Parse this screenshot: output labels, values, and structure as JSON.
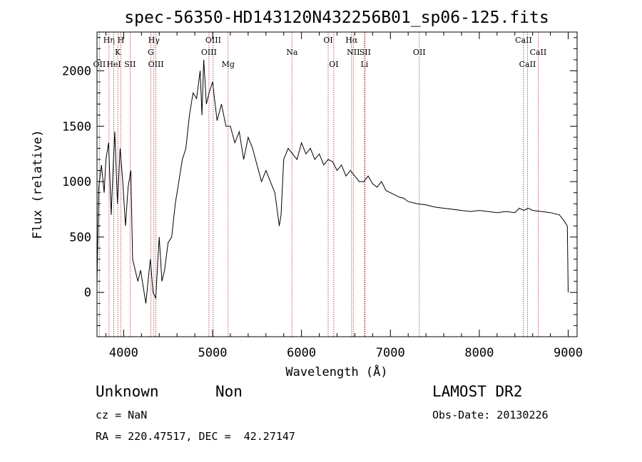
{
  "chart_data": {
    "type": "line",
    "title": "spec-56350-HD143120N432256B01_sp06-125.fits",
    "xlabel": "Wavelength (Å)",
    "ylabel": "Flux (relative)",
    "xlim": [
      3700,
      9100
    ],
    "ylim": [
      -400,
      2350
    ],
    "xticks": [
      4000,
      5000,
      6000,
      7000,
      8000,
      9000
    ],
    "yticks": [
      0,
      500,
      1000,
      1500,
      2000
    ],
    "grid": false,
    "line_color": "#000000",
    "marker_color": "#b03030",
    "series": [
      {
        "x": [
          3700,
          3720,
          3750,
          3780,
          3800,
          3830,
          3860,
          3880,
          3900,
          3930,
          3960,
          3990,
          4020,
          4050,
          4080,
          4100,
          4130,
          4160,
          4190,
          4220,
          4250,
          4280,
          4300,
          4330,
          4360,
          4400,
          4430,
          4460,
          4500,
          4540,
          4580,
          4620,
          4660,
          4700,
          4740,
          4780,
          4820,
          4860,
          4880,
          4900,
          4930,
          4960,
          5000,
          5050,
          5100,
          5150,
          5200,
          5250,
          5300,
          5350,
          5400,
          5450,
          5500,
          5550,
          5600,
          5650,
          5700,
          5750,
          5770,
          5800,
          5850,
          5900,
          5950,
          6000,
          6050,
          6100,
          6150,
          6200,
          6250,
          6300,
          6350,
          6400,
          6450,
          6500,
          6550,
          6600,
          6650,
          6700,
          6750,
          6800,
          6850,
          6900,
          6950,
          7000,
          7050,
          7100,
          7150,
          7200,
          7300,
          7400,
          7500,
          7600,
          7700,
          7800,
          7900,
          8000,
          8100,
          8200,
          8300,
          8400,
          8450,
          8500,
          8550,
          8600,
          8700,
          8800,
          8900,
          8950,
          8990,
          9000
        ],
        "y": [
          100,
          950,
          1150,
          900,
          1200,
          1350,
          700,
          1100,
          1450,
          800,
          1300,
          1000,
          600,
          950,
          1100,
          300,
          200,
          100,
          200,
          50,
          -100,
          150,
          300,
          0,
          -50,
          500,
          100,
          200,
          450,
          500,
          800,
          1000,
          1200,
          1300,
          1600,
          1800,
          1750,
          2000,
          1600,
          2100,
          1700,
          1800,
          1900,
          1550,
          1700,
          1500,
          1500,
          1350,
          1450,
          1200,
          1400,
          1300,
          1150,
          1000,
          1100,
          1000,
          900,
          600,
          700,
          1200,
          1300,
          1250,
          1200,
          1350,
          1250,
          1300,
          1200,
          1250,
          1150,
          1200,
          1180,
          1100,
          1150,
          1050,
          1100,
          1050,
          1000,
          1000,
          1050,
          980,
          950,
          1000,
          920,
          900,
          880,
          860,
          850,
          820,
          800,
          790,
          770,
          760,
          750,
          740,
          730,
          740,
          730,
          720,
          730,
          720,
          760,
          740,
          760,
          740,
          730,
          720,
          700,
          650,
          600,
          0
        ]
      }
    ],
    "line_markers": [
      {
        "label": "Hη",
        "x": 3835,
        "row": 0
      },
      {
        "label": "H",
        "x": 3968,
        "row": 0
      },
      {
        "label": "Hγ",
        "x": 4340,
        "row": 0
      },
      {
        "label": "OIII",
        "x": 5007,
        "row": 0
      },
      {
        "label": "OI",
        "x": 6300,
        "row": 0
      },
      {
        "label": "Hα",
        "x": 6563,
        "row": 0
      },
      {
        "label": "CaII",
        "x": 8498,
        "row": 0
      },
      {
        "label": "K",
        "x": 3934,
        "row": 1
      },
      {
        "label": "G",
        "x": 4305,
        "row": 1
      },
      {
        "label": "OIII",
        "x": 4959,
        "row": 1
      },
      {
        "label": "Na",
        "x": 5893,
        "row": 1
      },
      {
        "label": "NII",
        "x": 6583,
        "row": 1
      },
      {
        "label": "SII",
        "x": 6716,
        "row": 1
      },
      {
        "label": "OII",
        "x": 7325,
        "row": 1
      },
      {
        "label": "CaII",
        "x": 8662,
        "row": 1
      },
      {
        "label": "OII",
        "x": 3727,
        "row": 2
      },
      {
        "label": "HeI",
        "x": 3889,
        "row": 2
      },
      {
        "label": "SII",
        "x": 4072,
        "row": 2
      },
      {
        "label": "OIII",
        "x": 4363,
        "row": 2
      },
      {
        "label": "Mg",
        "x": 5175,
        "row": 2
      },
      {
        "label": "OI",
        "x": 6363,
        "row": 2
      },
      {
        "label": "Li",
        "x": 6708,
        "row": 2
      },
      {
        "label": "CaII",
        "x": 8542,
        "row": 2
      }
    ]
  },
  "footer": {
    "object_class": "Unknown",
    "object_subclass": "Non",
    "survey": "LAMOST DR2",
    "redshift": "cz = NaN",
    "obs_date": "Obs-Date: 20130226",
    "coords": "RA = 220.47517, DEC =  42.27147"
  }
}
